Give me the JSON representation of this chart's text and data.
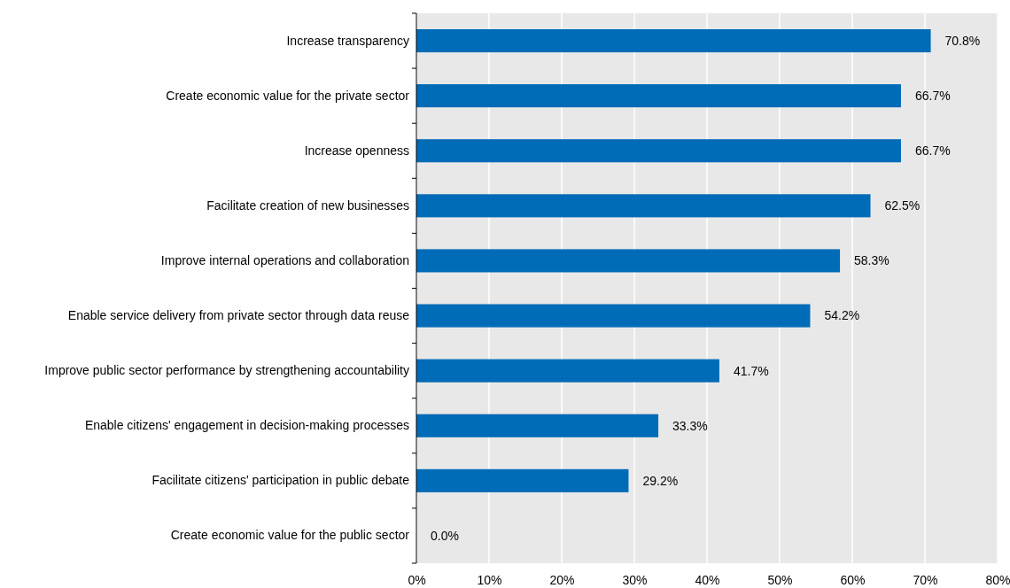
{
  "chart_data": {
    "type": "bar",
    "orientation": "horizontal",
    "categories": [
      "Increase transparency",
      "Create economic value for the private sector",
      "Increase openness",
      "Facilitate creation of new businesses",
      "Improve internal operations and collaboration",
      "Enable service delivery from private sector through data reuse",
      "Improve public sector performance by strengthening accountability",
      "Enable citizens' engagement in decision-making processes",
      "Facilitate citizens' participation in public debate",
      "Create economic value for the public sector"
    ],
    "values": [
      70.8,
      66.7,
      66.7,
      62.5,
      58.3,
      54.2,
      41.7,
      33.3,
      29.2,
      0.0
    ],
    "value_labels": [
      "70.8%",
      "66.7%",
      "66.7%",
      "62.5%",
      "58.3%",
      "54.2%",
      "41.7%",
      "33.3%",
      "29.2%",
      "0.0%"
    ],
    "color": "#006bb6",
    "xlim": [
      0,
      80
    ],
    "xticks": [
      {
        "value": 0,
        "label": "0%"
      },
      {
        "value": 10,
        "label": "10%"
      },
      {
        "value": 20,
        "label": "20%"
      },
      {
        "value": 30,
        "label": "30%"
      },
      {
        "value": 40,
        "label": "40%"
      },
      {
        "value": 50,
        "label": "50%"
      },
      {
        "value": 60,
        "label": "60%"
      },
      {
        "value": 70,
        "label": "70%"
      },
      {
        "value": 80,
        "label": "80%"
      }
    ],
    "grid": "x"
  }
}
